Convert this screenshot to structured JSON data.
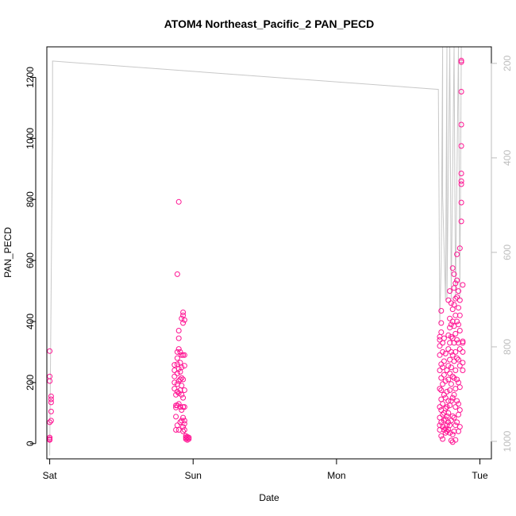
{
  "chart_data": {
    "type": "scatter",
    "title": "ATOM4 Northeast_Pacific_2 PAN_PECD",
    "xlabel": "Date",
    "ylabel": "PAN_PECD",
    "x_ticks": [
      "Sat",
      "Sun",
      "Mon",
      "Tue"
    ],
    "xlim_days": [
      -0.02,
      3.08
    ],
    "ylim": [
      -50,
      1300
    ],
    "y_ticks": [
      0,
      200,
      400,
      600,
      800,
      1000,
      1200
    ],
    "y2_ticks": [
      200,
      400,
      600,
      800,
      1000
    ],
    "y2lim": [
      1037,
      165
    ],
    "colors": {
      "points": "#ff1493",
      "altitude_line": "#c8c8c8",
      "axis": "#000000",
      "right_axis": "#bdbdbd"
    },
    "series": [
      {
        "type": "scatter",
        "points": [
          [
            0.0,
            303
          ],
          [
            0.0,
            220
          ],
          [
            0.0,
            205
          ],
          [
            0.01,
            155
          ],
          [
            0.01,
            145
          ],
          [
            0.01,
            135
          ],
          [
            0.01,
            105
          ],
          [
            0.01,
            75
          ],
          [
            0.0,
            70
          ],
          [
            0.0,
            20
          ],
          [
            0.0,
            15
          ],
          [
            0.0,
            12
          ],
          [
            0.87,
            258
          ],
          [
            0.87,
            240
          ],
          [
            0.87,
            220
          ],
          [
            0.87,
            200
          ],
          [
            0.87,
            180
          ],
          [
            0.88,
            160
          ],
          [
            0.88,
            125
          ],
          [
            0.88,
            118
          ],
          [
            0.88,
            88
          ],
          [
            0.88,
            45
          ],
          [
            0.89,
            555
          ],
          [
            0.89,
            300
          ],
          [
            0.89,
            280
          ],
          [
            0.89,
            260
          ],
          [
            0.89,
            230
          ],
          [
            0.89,
            195
          ],
          [
            0.89,
            170
          ],
          [
            0.89,
            125
          ],
          [
            0.89,
            60
          ],
          [
            0.9,
            792
          ],
          [
            0.9,
            370
          ],
          [
            0.9,
            345
          ],
          [
            0.9,
            310
          ],
          [
            0.9,
            245
          ],
          [
            0.9,
            205
          ],
          [
            0.9,
            165
          ],
          [
            0.9,
            130
          ],
          [
            0.9,
            45
          ],
          [
            0.91,
            300
          ],
          [
            0.91,
            265
          ],
          [
            0.91,
            235
          ],
          [
            0.91,
            210
          ],
          [
            0.91,
            175
          ],
          [
            0.91,
            120
          ],
          [
            0.91,
            70
          ],
          [
            0.92,
            410
          ],
          [
            0.92,
            290
          ],
          [
            0.92,
            250
          ],
          [
            0.92,
            215
          ],
          [
            0.92,
            190
          ],
          [
            0.92,
            160
          ],
          [
            0.92,
            110
          ],
          [
            0.92,
            75
          ],
          [
            0.93,
            430
          ],
          [
            0.93,
            420
          ],
          [
            0.93,
            395
          ],
          [
            0.93,
            290
          ],
          [
            0.93,
            210
          ],
          [
            0.93,
            150
          ],
          [
            0.93,
            120
          ],
          [
            0.93,
            85
          ],
          [
            0.93,
            55
          ],
          [
            0.93,
            40
          ],
          [
            0.94,
            405
          ],
          [
            0.94,
            290
          ],
          [
            0.94,
            255
          ],
          [
            0.94,
            175
          ],
          [
            0.94,
            120
          ],
          [
            0.94,
            75
          ],
          [
            0.94,
            65
          ],
          [
            0.94,
            45
          ],
          [
            0.95,
            25
          ],
          [
            0.95,
            20
          ],
          [
            0.95,
            15
          ],
          [
            0.96,
            22
          ],
          [
            0.96,
            18
          ],
          [
            0.96,
            12
          ],
          [
            0.97,
            15
          ],
          [
            0.97,
            20
          ],
          [
            2.72,
            350
          ],
          [
            2.72,
            340
          ],
          [
            2.72,
            320
          ],
          [
            2.72,
            290
          ],
          [
            2.72,
            240
          ],
          [
            2.72,
            180
          ],
          [
            2.72,
            120
          ],
          [
            2.72,
            85
          ],
          [
            2.72,
            60
          ],
          [
            2.72,
            45
          ],
          [
            2.73,
            435
          ],
          [
            2.73,
            395
          ],
          [
            2.73,
            365
          ],
          [
            2.73,
            260
          ],
          [
            2.73,
            215
          ],
          [
            2.73,
            175
          ],
          [
            2.73,
            145
          ],
          [
            2.73,
            110
          ],
          [
            2.73,
            70
          ],
          [
            2.73,
            25
          ],
          [
            2.74,
            330
          ],
          [
            2.74,
            300
          ],
          [
            2.74,
            250
          ],
          [
            2.74,
            195
          ],
          [
            2.74,
            130
          ],
          [
            2.74,
            95
          ],
          [
            2.74,
            55
          ],
          [
            2.74,
            15
          ],
          [
            2.75,
            345
          ],
          [
            2.75,
            270
          ],
          [
            2.75,
            225
          ],
          [
            2.75,
            160
          ],
          [
            2.75,
            100
          ],
          [
            2.75,
            75
          ],
          [
            2.75,
            45
          ],
          [
            2.76,
            295
          ],
          [
            2.76,
            205
          ],
          [
            2.76,
            150
          ],
          [
            2.76,
            115
          ],
          [
            2.76,
            80
          ],
          [
            2.76,
            50
          ],
          [
            2.76,
            35
          ],
          [
            2.77,
            240
          ],
          [
            2.77,
            170
          ],
          [
            2.77,
            120
          ],
          [
            2.77,
            90
          ],
          [
            2.77,
            60
          ],
          [
            2.77,
            40
          ],
          [
            2.78,
            470
          ],
          [
            2.78,
            355
          ],
          [
            2.78,
            310
          ],
          [
            2.78,
            255
          ],
          [
            2.78,
            210
          ],
          [
            2.78,
            140
          ],
          [
            2.78,
            100
          ],
          [
            2.78,
            70
          ],
          [
            2.78,
            45
          ],
          [
            2.79,
            500
          ],
          [
            2.79,
            410
          ],
          [
            2.79,
            380
          ],
          [
            2.79,
            330
          ],
          [
            2.79,
            275
          ],
          [
            2.79,
            230
          ],
          [
            2.79,
            175
          ],
          [
            2.79,
            125
          ],
          [
            2.79,
            60
          ],
          [
            2.79,
            35
          ],
          [
            2.8,
            460
          ],
          [
            2.8,
            390
          ],
          [
            2.8,
            350
          ],
          [
            2.8,
            300
          ],
          [
            2.8,
            250
          ],
          [
            2.8,
            195
          ],
          [
            2.8,
            140
          ],
          [
            2.8,
            75
          ],
          [
            2.8,
            10
          ],
          [
            2.81,
            575
          ],
          [
            2.81,
            440
          ],
          [
            2.81,
            400
          ],
          [
            2.81,
            345
          ],
          [
            2.81,
            290
          ],
          [
            2.81,
            220
          ],
          [
            2.81,
            150
          ],
          [
            2.81,
            90
          ],
          [
            2.81,
            30
          ],
          [
            2.81,
            5
          ],
          [
            2.82,
            555
          ],
          [
            2.82,
            510
          ],
          [
            2.82,
            455
          ],
          [
            2.82,
            385
          ],
          [
            2.82,
            330
          ],
          [
            2.82,
            270
          ],
          [
            2.82,
            215
          ],
          [
            2.82,
            160
          ],
          [
            2.82,
            85
          ],
          [
            2.82,
            40
          ],
          [
            2.83,
            525
          ],
          [
            2.83,
            475
          ],
          [
            2.83,
            420
          ],
          [
            2.83,
            360
          ],
          [
            2.83,
            300
          ],
          [
            2.83,
            240
          ],
          [
            2.83,
            180
          ],
          [
            2.83,
            120
          ],
          [
            2.83,
            60
          ],
          [
            2.83,
            12
          ],
          [
            2.84,
            620
          ],
          [
            2.84,
            535
          ],
          [
            2.84,
            480
          ],
          [
            2.84,
            400
          ],
          [
            2.84,
            340
          ],
          [
            2.84,
            280
          ],
          [
            2.84,
            210
          ],
          [
            2.84,
            140
          ],
          [
            2.84,
            70
          ],
          [
            2.85,
            500
          ],
          [
            2.85,
            445
          ],
          [
            2.85,
            390
          ],
          [
            2.85,
            330
          ],
          [
            2.85,
            275
          ],
          [
            2.85,
            200
          ],
          [
            2.85,
            130
          ],
          [
            2.85,
            95
          ],
          [
            2.85,
            40
          ],
          [
            2.86,
            640
          ],
          [
            2.86,
            470
          ],
          [
            2.86,
            420
          ],
          [
            2.86,
            370
          ],
          [
            2.86,
            310
          ],
          [
            2.86,
            255
          ],
          [
            2.86,
            185
          ],
          [
            2.86,
            110
          ],
          [
            2.86,
            55
          ],
          [
            2.87,
            1255
          ],
          [
            2.87,
            1250
          ],
          [
            2.87,
            1153
          ],
          [
            2.87,
            1045
          ],
          [
            2.87,
            975
          ],
          [
            2.87,
            885
          ],
          [
            2.87,
            860
          ],
          [
            2.87,
            850
          ],
          [
            2.87,
            790
          ],
          [
            2.87,
            728
          ],
          [
            2.88,
            520
          ],
          [
            2.88,
            335
          ],
          [
            2.88,
            330
          ],
          [
            2.88,
            300
          ],
          [
            2.88,
            265
          ],
          [
            2.88,
            240
          ]
        ]
      },
      {
        "type": "altitude_line",
        "axis": "right",
        "points": [
          [
            0.0,
            1030
          ],
          [
            0.02,
            330
          ],
          [
            0.02,
            195
          ],
          [
            2.71,
            255
          ],
          [
            2.72,
            750
          ],
          [
            2.73,
            620
          ],
          [
            2.74,
            165
          ],
          [
            2.74,
            480
          ],
          [
            2.76,
            700
          ],
          [
            2.77,
            165
          ],
          [
            2.77,
            700
          ],
          [
            2.79,
            165
          ],
          [
            2.8,
            700
          ],
          [
            2.82,
            165
          ],
          [
            2.83,
            700
          ],
          [
            2.85,
            165
          ],
          [
            2.86,
            700
          ],
          [
            2.87,
            165
          ]
        ]
      }
    ]
  }
}
